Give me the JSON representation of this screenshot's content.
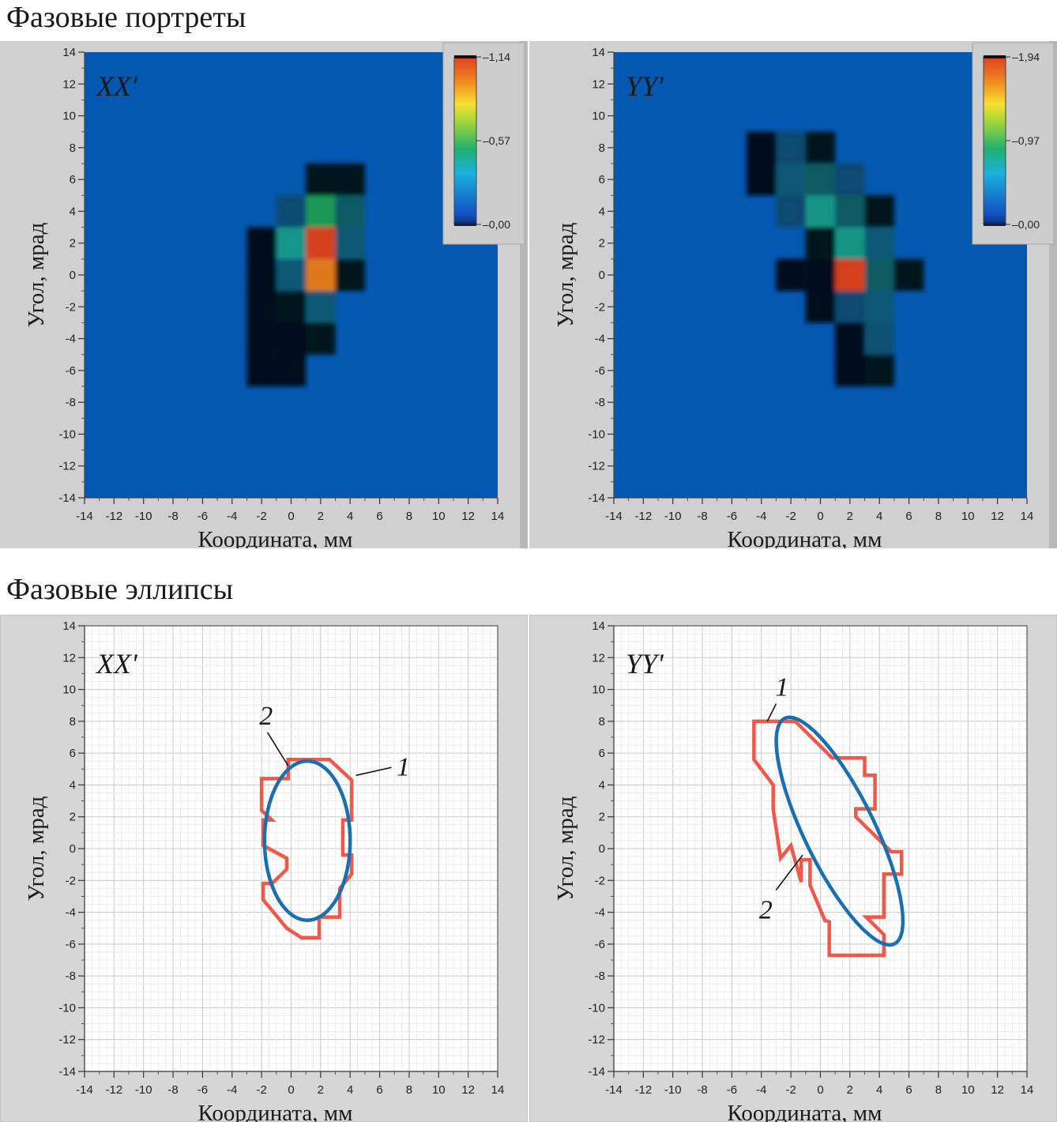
{
  "titles": {
    "portraits": "Фазовые портреты",
    "ellipses": "Фазовые эллипсы"
  },
  "axes": {
    "xlabel": "Координата, мм",
    "ylabel": "Угол, мрад",
    "ticks": [
      "-14",
      "-12",
      "-10",
      "-8",
      "-6",
      "-4",
      "-2",
      "0",
      "2",
      "4",
      "6",
      "8",
      "10",
      "12",
      "14"
    ]
  },
  "colors": {
    "background_blue": "#0558b0",
    "frame_gray": "#cfcfcf",
    "grid": "#dcdcdc",
    "boundary_red": "#f2584a",
    "ellipse_blue": "#1a6fb0"
  },
  "chart_data": [
    {
      "type": "heatmap",
      "id": "portrait-xx",
      "label": "XX'",
      "xlabel": "Координата, мм",
      "ylabel": "Угол, мрад",
      "xlim": [
        -14,
        14
      ],
      "ylim": [
        -14,
        14
      ],
      "colorbar": {
        "ticks": [
          "1,14",
          "0,57",
          "0,00"
        ],
        "max": 1.14,
        "mid": 0.57,
        "min": 0.0
      },
      "cells_mm_step": 2,
      "cells": [
        {
          "x": -2,
          "y": -6,
          "v": 0.02
        },
        {
          "x": 0,
          "y": -6,
          "v": 0.02
        },
        {
          "x": -2,
          "y": -4,
          "v": 0.03
        },
        {
          "x": 0,
          "y": -4,
          "v": 0.08
        },
        {
          "x": 2,
          "y": -4,
          "v": 0.12
        },
        {
          "x": -2,
          "y": -2,
          "v": 0.05
        },
        {
          "x": 0,
          "y": -2,
          "v": 0.12
        },
        {
          "x": 2,
          "y": -2,
          "v": 0.3
        },
        {
          "x": -2,
          "y": 0,
          "v": 0.06
        },
        {
          "x": 0,
          "y": 0,
          "v": 0.3
        },
        {
          "x": 2,
          "y": 0,
          "v": 1.0
        },
        {
          "x": 4,
          "y": 0,
          "v": 0.15
        },
        {
          "x": -2,
          "y": 2,
          "v": 0.04
        },
        {
          "x": 0,
          "y": 2,
          "v": 0.4
        },
        {
          "x": 2,
          "y": 2,
          "v": 1.14
        },
        {
          "x": 4,
          "y": 2,
          "v": 0.3
        },
        {
          "x": 0,
          "y": 4,
          "v": 0.2
        },
        {
          "x": 2,
          "y": 4,
          "v": 0.5
        },
        {
          "x": 4,
          "y": 4,
          "v": 0.35
        },
        {
          "x": 2,
          "y": 6,
          "v": 0.15
        },
        {
          "x": 4,
          "y": 6,
          "v": 0.12
        }
      ]
    },
    {
      "type": "heatmap",
      "id": "portrait-yy",
      "label": "YY'",
      "xlabel": "Координата, мм",
      "ylabel": "Угол, мрад",
      "xlim": [
        -14,
        14
      ],
      "ylim": [
        -14,
        14
      ],
      "colorbar": {
        "ticks": [
          "1,94",
          "0,97",
          "0,00"
        ],
        "max": 1.94,
        "mid": 0.97,
        "min": 0.0
      },
      "cells_mm_step": 2,
      "cells": [
        {
          "x": -4,
          "y": 8,
          "v": 0.05
        },
        {
          "x": -2,
          "y": 8,
          "v": 0.3
        },
        {
          "x": 0,
          "y": 8,
          "v": 0.2
        },
        {
          "x": -4,
          "y": 6,
          "v": 0.05
        },
        {
          "x": -2,
          "y": 6,
          "v": 0.5
        },
        {
          "x": 0,
          "y": 6,
          "v": 0.6
        },
        {
          "x": 2,
          "y": 6,
          "v": 0.3
        },
        {
          "x": -2,
          "y": 4,
          "v": 0.3
        },
        {
          "x": 0,
          "y": 4,
          "v": 0.7
        },
        {
          "x": 2,
          "y": 4,
          "v": 0.6
        },
        {
          "x": 4,
          "y": 4,
          "v": 0.2
        },
        {
          "x": 0,
          "y": 2,
          "v": 0.2
        },
        {
          "x": 2,
          "y": 2,
          "v": 0.7
        },
        {
          "x": 4,
          "y": 2,
          "v": 0.5
        },
        {
          "x": -2,
          "y": 0,
          "v": 0.05
        },
        {
          "x": 0,
          "y": 0,
          "v": 0.1
        },
        {
          "x": 2,
          "y": 0,
          "v": 1.94
        },
        {
          "x": 4,
          "y": 0,
          "v": 0.6
        },
        {
          "x": 6,
          "y": 0,
          "v": 0.2
        },
        {
          "x": 0,
          "y": -2,
          "v": 0.1
        },
        {
          "x": 2,
          "y": -2,
          "v": 0.3
        },
        {
          "x": 4,
          "y": -2,
          "v": 0.5
        },
        {
          "x": 2,
          "y": -4,
          "v": 0.1
        },
        {
          "x": 4,
          "y": -4,
          "v": 0.4
        },
        {
          "x": 2,
          "y": -6,
          "v": 0.05
        },
        {
          "x": 4,
          "y": -6,
          "v": 0.2
        }
      ]
    },
    {
      "type": "line",
      "id": "ellipse-xx",
      "label": "XX'",
      "xlabel": "Координата, мм",
      "ylabel": "Угол, мрад",
      "xlim": [
        -14,
        14
      ],
      "ylim": [
        -14,
        14
      ],
      "grid": true,
      "curve_labels": [
        "1",
        "2"
      ],
      "boundary": [
        [
          -2,
          4.4
        ],
        [
          -0.2,
          4.4
        ],
        [
          -0.2,
          5.6
        ],
        [
          2.6,
          5.6
        ],
        [
          4.1,
          4.3
        ],
        [
          4.1,
          1.8
        ],
        [
          3.5,
          1.8
        ],
        [
          3.5,
          -0.4
        ],
        [
          4.1,
          -0.4
        ],
        [
          4.1,
          -1.6
        ],
        [
          3.3,
          -2.5
        ],
        [
          3.3,
          -4.3
        ],
        [
          1.9,
          -4.3
        ],
        [
          1.9,
          -5.6
        ],
        [
          0.7,
          -5.6
        ],
        [
          -0.3,
          -5.0
        ],
        [
          -1.9,
          -3.2
        ],
        [
          -1.9,
          -2.2
        ],
        [
          -1.3,
          -2.2
        ],
        [
          -0.3,
          -1.3
        ],
        [
          -0.3,
          -0.6
        ],
        [
          -1.9,
          0.2
        ],
        [
          -1.9,
          1.8
        ],
        [
          -1.3,
          1.8
        ],
        [
          -2,
          2.4
        ]
      ],
      "ellipse": {
        "cx": 1.1,
        "cy": 0.5,
        "rx": 2.9,
        "ry": 5.0,
        "angle_deg": 0
      }
    },
    {
      "type": "line",
      "id": "ellipse-yy",
      "label": "YY'",
      "xlabel": "Координата, мм",
      "ylabel": "Угол, мрад",
      "xlim": [
        -14,
        14
      ],
      "ylim": [
        -14,
        14
      ],
      "grid": true,
      "curve_labels": [
        "1",
        "2"
      ],
      "boundary": [
        [
          -4.5,
          8.0
        ],
        [
          -1.7,
          8.0
        ],
        [
          0.8,
          5.7
        ],
        [
          3.0,
          5.7
        ],
        [
          3.0,
          4.6
        ],
        [
          3.7,
          4.6
        ],
        [
          3.7,
          2.5
        ],
        [
          2.4,
          2.5
        ],
        [
          2.4,
          2.0
        ],
        [
          4.8,
          -0.2
        ],
        [
          5.5,
          -0.2
        ],
        [
          5.5,
          -1.6
        ],
        [
          4.3,
          -1.6
        ],
        [
          4.3,
          -4.3
        ],
        [
          3.1,
          -4.3
        ],
        [
          4.3,
          -5.4
        ],
        [
          4.3,
          -6.7
        ],
        [
          0.6,
          -6.7
        ],
        [
          0.6,
          -4.6
        ],
        [
          0.3,
          -4.5
        ],
        [
          -0.7,
          -2.3
        ],
        [
          -0.7,
          -0.7
        ],
        [
          -1.3,
          -0.7
        ],
        [
          -1.3,
          -2.1
        ],
        [
          -2.0,
          0.2
        ],
        [
          -2.7,
          -0.6
        ],
        [
          -3.2,
          2.5
        ],
        [
          -3.2,
          4.0
        ],
        [
          -4.5,
          5.6
        ]
      ],
      "ellipse": {
        "cx": 1.3,
        "cy": 1.1,
        "rx": 8.0,
        "ry": 2.35,
        "angle_deg": -62
      }
    }
  ]
}
